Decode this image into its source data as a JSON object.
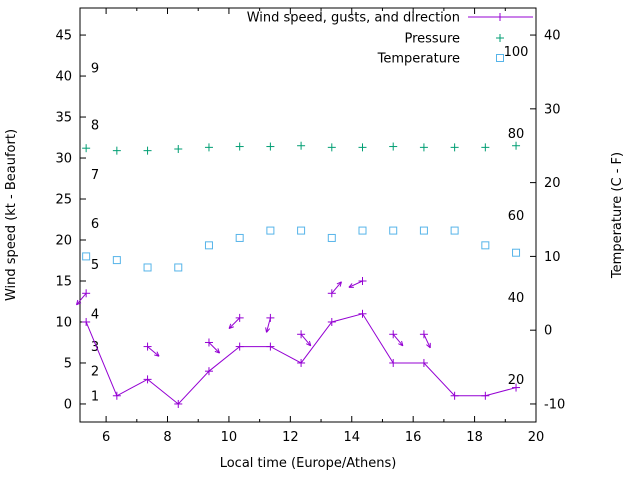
{
  "chart_data": {
    "type": "line",
    "title": "",
    "xlabel": "Local time (Europe/Athens)",
    "ylabel_left": "Wind speed (kt - Beaufort)",
    "ylabel_right": "Temperature (C - F)",
    "xlim": [
      5.15,
      20
    ],
    "ylim_left_kt": [
      -2.2,
      48.3
    ],
    "x_ticks": [
      6,
      8,
      10,
      12,
      14,
      16,
      18,
      20
    ],
    "x_minor_ticks": [
      7,
      9,
      11,
      13,
      15,
      17,
      19
    ],
    "y_left_ticks": [
      0,
      5,
      10,
      15,
      20,
      25,
      30,
      35,
      40,
      45
    ],
    "y_right_ticks_c": [
      -10,
      0,
      10,
      20,
      30,
      40
    ],
    "c_to_kt": {
      "offset": 10,
      "scale": 0.9
    },
    "beaufort_labels": [
      {
        "text": "1",
        "kt": 1
      },
      {
        "text": "2",
        "kt": 4
      },
      {
        "text": "3",
        "kt": 7
      },
      {
        "text": "4",
        "kt": 11
      },
      {
        "text": "5",
        "kt": 17
      },
      {
        "text": "6",
        "kt": 22
      },
      {
        "text": "7",
        "kt": 28
      },
      {
        "text": "8",
        "kt": 34
      },
      {
        "text": "9",
        "kt": 41
      }
    ],
    "fahrenheit_labels": [
      {
        "text": "20",
        "kt": 3
      },
      {
        "text": "40",
        "kt": 13
      },
      {
        "text": "60",
        "kt": 23
      },
      {
        "text": "80",
        "kt": 33
      },
      {
        "text": "100",
        "kt": 43
      }
    ],
    "x_hours": [
      5.35,
      6.35,
      7.35,
      8.35,
      9.35,
      10.35,
      11.35,
      12.35,
      13.35,
      14.35,
      15.35,
      16.35,
      17.35,
      18.35,
      19.35
    ],
    "series": [
      {
        "id": "wind",
        "name": "Wind speed, gusts, and direction",
        "style": "line+points",
        "marker": "plus",
        "color": "#9400d3",
        "units": "kt",
        "values": [
          10,
          1,
          3,
          0,
          4,
          7,
          7,
          5,
          10,
          11,
          5,
          5,
          1,
          1,
          2
        ]
      },
      {
        "id": "pressure",
        "name": "Pressure",
        "style": "points",
        "marker": "plus",
        "color": "#009e73",
        "units": "left_axis_position",
        "values": [
          31.2,
          30.9,
          30.9,
          31.1,
          31.3,
          31.4,
          31.4,
          31.5,
          31.3,
          31.3,
          31.4,
          31.3,
          31.3,
          31.3,
          31.5
        ]
      },
      {
        "id": "temperature",
        "name": "Temperature",
        "style": "points",
        "marker": "square-open",
        "color": "#56b4e9",
        "units": "celsius",
        "values": [
          10,
          9.5,
          8.5,
          8.5,
          11.5,
          12.5,
          13.5,
          13.5,
          12.5,
          13.5,
          13.5,
          13.5,
          13.5,
          11.5,
          10.5
        ]
      }
    ],
    "gusts": {
      "color": "#9400d3",
      "marker": "plus",
      "points": [
        {
          "x": 5.35,
          "kt": 13.5,
          "dir_deg": 230
        },
        {
          "x": 7.35,
          "kt": 7,
          "dir_deg": 320
        },
        {
          "x": 9.35,
          "kt": 7.5,
          "dir_deg": 315
        },
        {
          "x": 10.35,
          "kt": 10.5,
          "dir_deg": 225
        },
        {
          "x": 11.35,
          "kt": 10.5,
          "dir_deg": 255
        },
        {
          "x": 12.35,
          "kt": 8.5,
          "dir_deg": 310
        },
        {
          "x": 13.35,
          "kt": 13.5,
          "dir_deg": 50
        },
        {
          "x": 14.35,
          "kt": 15,
          "dir_deg": 205
        },
        {
          "x": 15.35,
          "kt": 8.5,
          "dir_deg": 310
        },
        {
          "x": 16.35,
          "kt": 8.5,
          "dir_deg": 295
        }
      ]
    },
    "legend": [
      {
        "label": "Wind speed, gusts, and direction",
        "series": "wind"
      },
      {
        "label": "Pressure",
        "series": "pressure"
      },
      {
        "label": "Temperature",
        "series": "temperature"
      }
    ],
    "colors": {
      "axis": "#000000",
      "background": "#ffffff"
    }
  }
}
